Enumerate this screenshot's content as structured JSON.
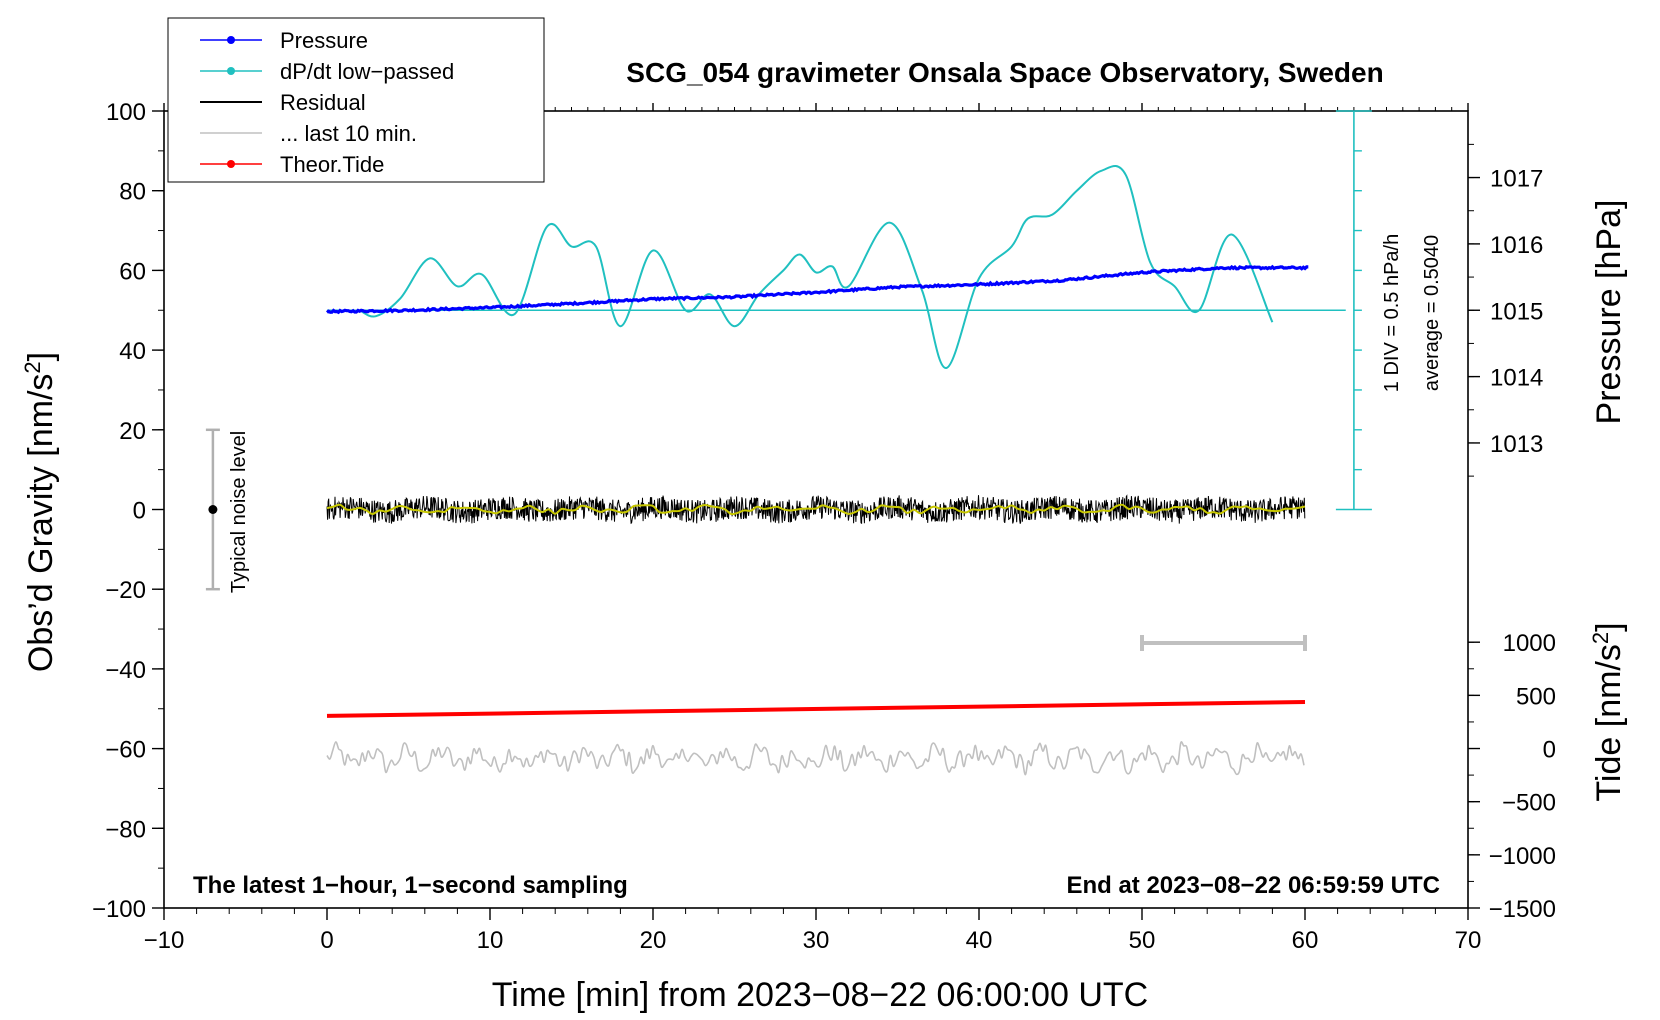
{
  "chart_data": {
    "type": "line",
    "title": "SCG_054 gravimeter Onsala Space Observatory, Sweden",
    "xlabel": "Time [min] from 2023−08−22 06:00:00 UTC",
    "ylabel_left": "Obs’d Gravity [nm/s",
    "ylabel_left_sup": "2",
    "ylabel_left_end": "]",
    "ylabel_pressure": "Pressure [hPa]",
    "ylabel_tide": "Tide [nm/s",
    "ylabel_tide_sup": "2",
    "ylabel_tide_end": "]",
    "xlim": [
      -10,
      70
    ],
    "ylim": [
      -100,
      100
    ],
    "x_ticks": [
      "−10",
      "0",
      "10",
      "20",
      "30",
      "40",
      "50",
      "60",
      "70"
    ],
    "x_tick_values": [
      -10,
      0,
      10,
      20,
      30,
      40,
      50,
      60,
      70
    ],
    "y_ticks": [
      "−100",
      "−80",
      "−60",
      "−40",
      "−20",
      "0",
      "20",
      "40",
      "60",
      "80",
      "100"
    ],
    "y_tick_values": [
      -100,
      -80,
      -60,
      -40,
      -20,
      0,
      20,
      40,
      60,
      80,
      100
    ],
    "pressure_axis": {
      "ticks": [
        "1013",
        "1014",
        "1015",
        "1016",
        "1017"
      ],
      "values": [
        1013,
        1014,
        1015,
        1016,
        1017
      ],
      "map": {
        "value_a": 1015,
        "grav_a": 50,
        "value_b": 1017,
        "grav_b": 83.3
      }
    },
    "tide_axis": {
      "ticks": [
        "−1500",
        "−1000",
        "−500",
        "0",
        "500",
        "1000"
      ],
      "values": [
        -1500,
        -1000,
        -500,
        0,
        500,
        1000
      ],
      "map": {
        "value_a": -1500,
        "grav_a": -100,
        "value_b": 1000,
        "grav_b": -33.3
      }
    },
    "legend": [
      {
        "name": "Pressure",
        "color": "#0000ff",
        "marker": true
      },
      {
        "name": "dP/dt low−passed",
        "color": "#20c0c0",
        "marker": true
      },
      {
        "name": "Residual",
        "color": "#000000",
        "marker": false
      },
      {
        "name": "... last 10 min.",
        "color": "#c0c0c0",
        "marker": false
      },
      {
        "name": "Theor.Tide",
        "color": "#ff0000",
        "marker": true
      }
    ],
    "series": [
      {
        "name": "Pressure",
        "color": "#0000ff",
        "unit": "hPa",
        "x": [
          0,
          5,
          10,
          15,
          20,
          25,
          30,
          35,
          40,
          45,
          50,
          55,
          60
        ],
        "values": [
          1014.98,
          1015.0,
          1015.04,
          1015.1,
          1015.17,
          1015.2,
          1015.27,
          1015.35,
          1015.39,
          1015.45,
          1015.57,
          1015.64,
          1015.64
        ]
      },
      {
        "name": "dP/dt low−passed",
        "color": "#20c0c0",
        "unit": "gravity-scale",
        "x": [
          2,
          3,
          4.5,
          6.3,
          8,
          9.5,
          11.5,
          13.5,
          15,
          16.5,
          18,
          20,
          22,
          23.5,
          25,
          26.5,
          28,
          29,
          30,
          31,
          32,
          34.5,
          36.5,
          38,
          40,
          42,
          43,
          44.5,
          46,
          47.5,
          49,
          50.5,
          52,
          53.5,
          55.5,
          58
        ],
        "values": [
          50,
          48.5,
          53,
          63,
          56,
          59,
          49,
          71,
          66,
          66,
          46,
          65,
          50,
          54,
          46,
          54,
          60,
          64,
          59.5,
          61,
          56,
          72,
          55,
          35.5,
          58,
          66,
          73,
          74,
          80,
          85,
          84,
          62,
          56,
          50,
          69,
          47
        ]
      },
      {
        "name": "Residual",
        "color": "#000000",
        "unit": "nm/s2",
        "x_range": [
          0,
          60
        ],
        "mean": 0,
        "amplitude": 3
      },
      {
        "name": "Residual smoothed",
        "color": "#c8c800",
        "unit": "nm/s2",
        "x_range": [
          0,
          60
        ],
        "mean": 0
      },
      {
        "name": "Theor.Tide",
        "color": "#ff0000",
        "unit": "gravity-scale",
        "x": [
          0,
          60
        ],
        "values": [
          -51.8,
          -48.3
        ]
      },
      {
        "name": "... last 10 min.",
        "color": "#c0c0c0",
        "unit": "gravity-scale",
        "x_range": [
          0,
          60
        ],
        "mean": -62.5,
        "amplitude": 3.5
      }
    ],
    "reference_line": {
      "y": 50,
      "x_range": [
        0,
        62.5
      ],
      "color": "#20c0c0"
    },
    "pressure_scale_bar": {
      "x": 63,
      "y_range": [
        0,
        100
      ],
      "tick_step": 10,
      "label_div": "1 DIV = 0.5 hPa/h",
      "label_avg": "average = 0.5040"
    },
    "noise_bar": {
      "x": -7,
      "y_center": 0,
      "y_range": [
        -20,
        20
      ],
      "label": "Typical noise level"
    },
    "ten_min_bar": {
      "x_range": [
        50,
        60
      ],
      "y": -33.5
    },
    "footer_left": "The latest 1−hour, 1−second sampling",
    "footer_right": "End at 2023−08−22 06:59:59 UTC"
  }
}
